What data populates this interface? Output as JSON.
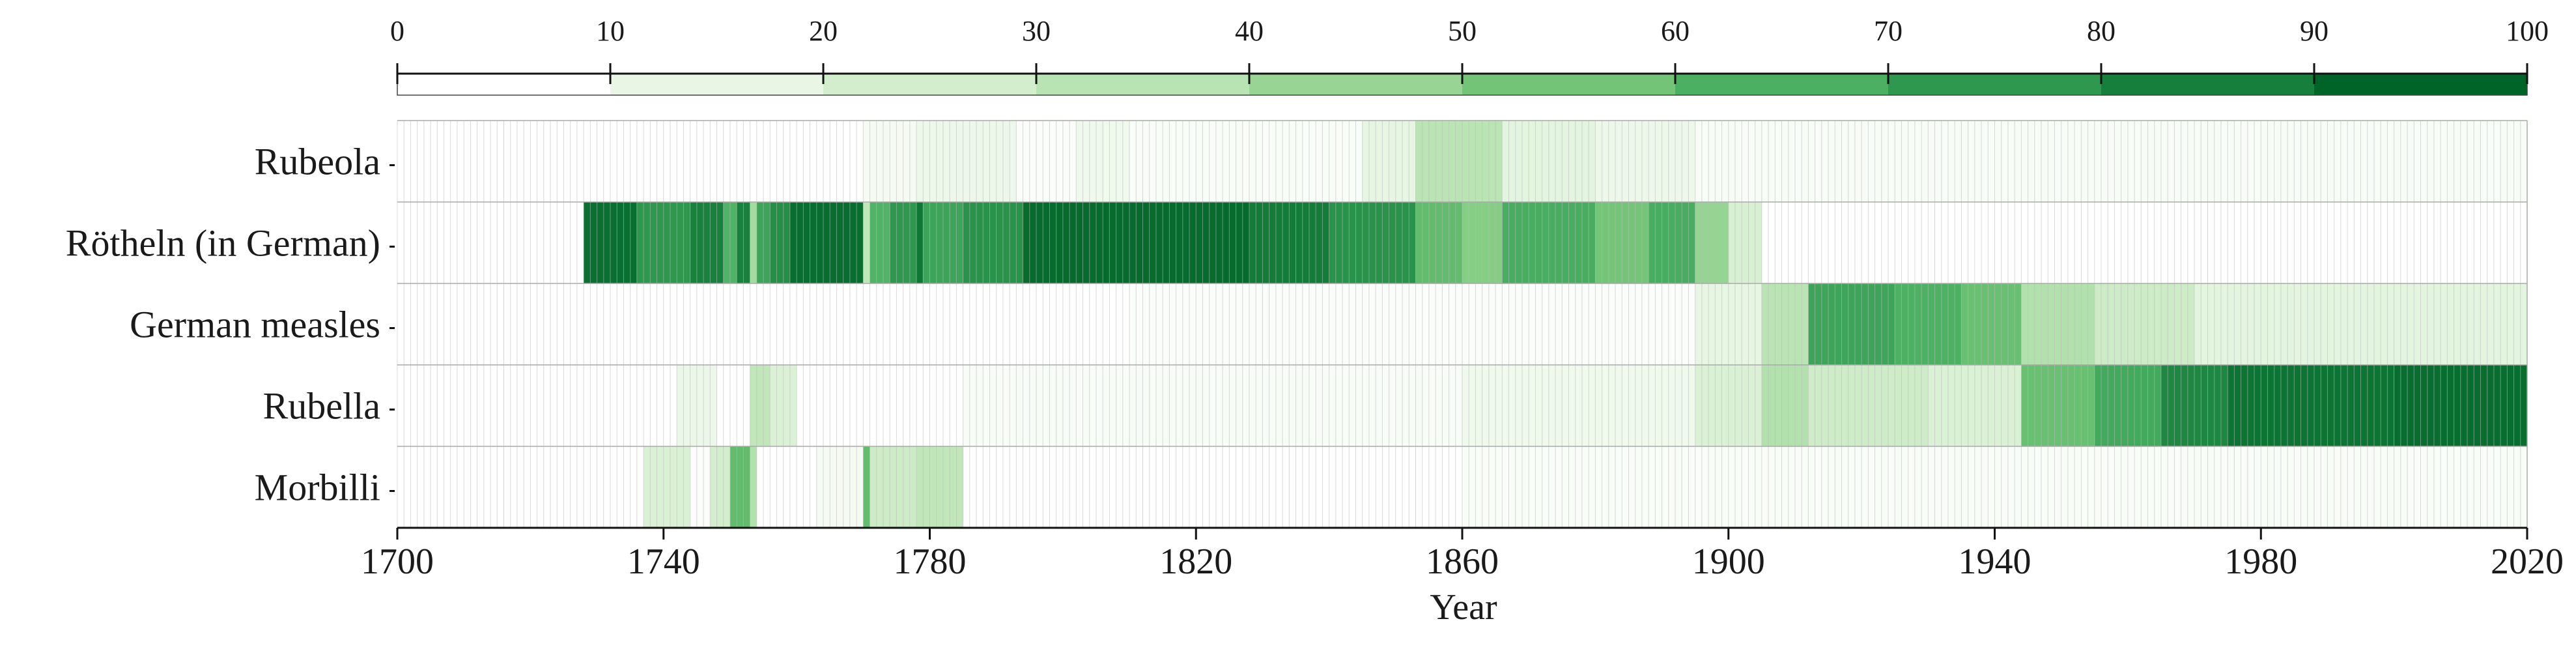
{
  "chart_data": {
    "type": "heatmap",
    "xlabel": "Year",
    "ylabel": "",
    "xlim": [
      1700,
      2020
    ],
    "x_ticks": [
      1700,
      1740,
      1780,
      1820,
      1860,
      1900,
      1940,
      1980,
      2020
    ],
    "rows": [
      "Rubeola",
      "Rötheln (in German)",
      "German measles",
      "Rubella",
      "Morbilli"
    ],
    "colorbar": {
      "ticks": [
        0,
        10,
        20,
        30,
        40,
        50,
        60,
        70,
        80,
        90,
        100
      ],
      "colors": [
        "#ffffff",
        "#e9f6e5",
        "#d3eecd",
        "#b8e3b2",
        "#98d594",
        "#73c476",
        "#4bb062",
        "#2f984f",
        "#157f3b",
        "#006428"
      ]
    },
    "series": [
      {
        "name": "Rubeola",
        "segments": [
          {
            "from": 1700,
            "to": 1770,
            "value": 0
          },
          {
            "from": 1770,
            "to": 1778,
            "value": 5
          },
          {
            "from": 1778,
            "to": 1793,
            "value": 9
          },
          {
            "from": 1793,
            "to": 1802,
            "value": 2
          },
          {
            "from": 1802,
            "to": 1810,
            "value": 8
          },
          {
            "from": 1810,
            "to": 1845,
            "value": 3
          },
          {
            "from": 1845,
            "to": 1853,
            "value": 12
          },
          {
            "from": 1853,
            "to": 1866,
            "value": 32
          },
          {
            "from": 1866,
            "to": 1880,
            "value": 14
          },
          {
            "from": 1880,
            "to": 1895,
            "value": 9
          },
          {
            "from": 1895,
            "to": 2020,
            "value": 4
          }
        ]
      },
      {
        "name": "Rötheln (in German)",
        "segments": [
          {
            "from": 1700,
            "to": 1728,
            "value": 0
          },
          {
            "from": 1728,
            "to": 1736,
            "value": 95
          },
          {
            "from": 1736,
            "to": 1744,
            "value": 78
          },
          {
            "from": 1744,
            "to": 1749,
            "value": 88
          },
          {
            "from": 1749,
            "to": 1751,
            "value": 65
          },
          {
            "from": 1751,
            "to": 1753,
            "value": 88
          },
          {
            "from": 1753,
            "to": 1754,
            "value": 40
          },
          {
            "from": 1754,
            "to": 1756,
            "value": 72
          },
          {
            "from": 1756,
            "to": 1759,
            "value": 82
          },
          {
            "from": 1759,
            "to": 1770,
            "value": 96
          },
          {
            "from": 1770,
            "to": 1771,
            "value": 30
          },
          {
            "from": 1771,
            "to": 1774,
            "value": 65
          },
          {
            "from": 1774,
            "to": 1778,
            "value": 78
          },
          {
            "from": 1778,
            "to": 1779,
            "value": 92
          },
          {
            "from": 1779,
            "to": 1785,
            "value": 72
          },
          {
            "from": 1785,
            "to": 1794,
            "value": 80
          },
          {
            "from": 1794,
            "to": 1828,
            "value": 97
          },
          {
            "from": 1828,
            "to": 1840,
            "value": 90
          },
          {
            "from": 1840,
            "to": 1853,
            "value": 80
          },
          {
            "from": 1853,
            "to": 1860,
            "value": 60
          },
          {
            "from": 1860,
            "to": 1866,
            "value": 50
          },
          {
            "from": 1866,
            "to": 1880,
            "value": 68
          },
          {
            "from": 1880,
            "to": 1888,
            "value": 55
          },
          {
            "from": 1888,
            "to": 1895,
            "value": 68
          },
          {
            "from": 1895,
            "to": 1900,
            "value": 45
          },
          {
            "from": 1900,
            "to": 1905,
            "value": 20
          },
          {
            "from": 1905,
            "to": 2020,
            "value": 0
          }
        ]
      },
      {
        "name": "German measles",
        "segments": [
          {
            "from": 1700,
            "to": 1810,
            "value": 0
          },
          {
            "from": 1810,
            "to": 1895,
            "value": 2
          },
          {
            "from": 1895,
            "to": 1905,
            "value": 12
          },
          {
            "from": 1905,
            "to": 1912,
            "value": 32
          },
          {
            "from": 1912,
            "to": 1925,
            "value": 72
          },
          {
            "from": 1925,
            "to": 1935,
            "value": 66
          },
          {
            "from": 1935,
            "to": 1944,
            "value": 58
          },
          {
            "from": 1944,
            "to": 1955,
            "value": 35
          },
          {
            "from": 1955,
            "to": 1970,
            "value": 25
          },
          {
            "from": 1970,
            "to": 2020,
            "value": 14
          }
        ]
      },
      {
        "name": "Rubella",
        "segments": [
          {
            "from": 1700,
            "to": 1742,
            "value": 0
          },
          {
            "from": 1742,
            "to": 1748,
            "value": 10
          },
          {
            "from": 1748,
            "to": 1753,
            "value": 0
          },
          {
            "from": 1753,
            "to": 1756,
            "value": 30
          },
          {
            "from": 1756,
            "to": 1760,
            "value": 18
          },
          {
            "from": 1760,
            "to": 1785,
            "value": 0
          },
          {
            "from": 1785,
            "to": 1860,
            "value": 4
          },
          {
            "from": 1860,
            "to": 1895,
            "value": 8
          },
          {
            "from": 1895,
            "to": 1905,
            "value": 18
          },
          {
            "from": 1905,
            "to": 1912,
            "value": 35
          },
          {
            "from": 1912,
            "to": 1930,
            "value": 24
          },
          {
            "from": 1930,
            "to": 1944,
            "value": 18
          },
          {
            "from": 1944,
            "to": 1955,
            "value": 58
          },
          {
            "from": 1955,
            "to": 1965,
            "value": 70
          },
          {
            "from": 1965,
            "to": 1975,
            "value": 85
          },
          {
            "from": 1975,
            "to": 2000,
            "value": 93
          },
          {
            "from": 2000,
            "to": 2020,
            "value": 96
          }
        ]
      },
      {
        "name": "Morbilli",
        "segments": [
          {
            "from": 1700,
            "to": 1737,
            "value": 0
          },
          {
            "from": 1737,
            "to": 1744,
            "value": 18
          },
          {
            "from": 1744,
            "to": 1747,
            "value": 2
          },
          {
            "from": 1747,
            "to": 1750,
            "value": 22
          },
          {
            "from": 1750,
            "to": 1753,
            "value": 60
          },
          {
            "from": 1753,
            "to": 1754,
            "value": 35
          },
          {
            "from": 1754,
            "to": 1763,
            "value": 0
          },
          {
            "from": 1763,
            "to": 1770,
            "value": 5
          },
          {
            "from": 1770,
            "to": 1771,
            "value": 60
          },
          {
            "from": 1771,
            "to": 1778,
            "value": 25
          },
          {
            "from": 1778,
            "to": 1785,
            "value": 30
          },
          {
            "from": 1785,
            "to": 1860,
            "value": 0
          },
          {
            "from": 1860,
            "to": 2020,
            "value": 3
          }
        ]
      }
    ]
  }
}
